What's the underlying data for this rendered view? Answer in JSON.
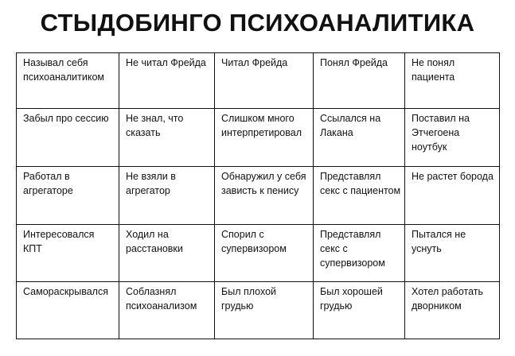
{
  "title": "СТЫДОБИНГО ПСИХОАНАЛИТИКА",
  "rows": [
    [
      "Называл себя психоаналитиком",
      "Не читал Фрейда",
      "Читал Фрейда",
      "Понял Фрейда",
      "Не понял пациента"
    ],
    [
      "Забыл про сессию",
      "Не знал, что сказать",
      "Слишком много интерпретировал",
      "Ссылался на Лакана",
      "Поставил на Этчегоена ноутбук"
    ],
    [
      "Работал в агрегаторе",
      "Не взяли в агрегатор",
      "Обнаружил у себя зависть к пенису",
      "Представлял секс с пациентом",
      "Не растет борода"
    ],
    [
      "Интересовался КПТ",
      "Ходил на расстановки",
      "Спорил с супервизором",
      "Представлял секс с супервизором",
      "Пытался не уснуть"
    ],
    [
      "Самораскрывался",
      "Соблазнял психоанализом",
      "Был плохой грудью",
      "Был хорошей грудью",
      "Хотел работать дворником"
    ]
  ]
}
